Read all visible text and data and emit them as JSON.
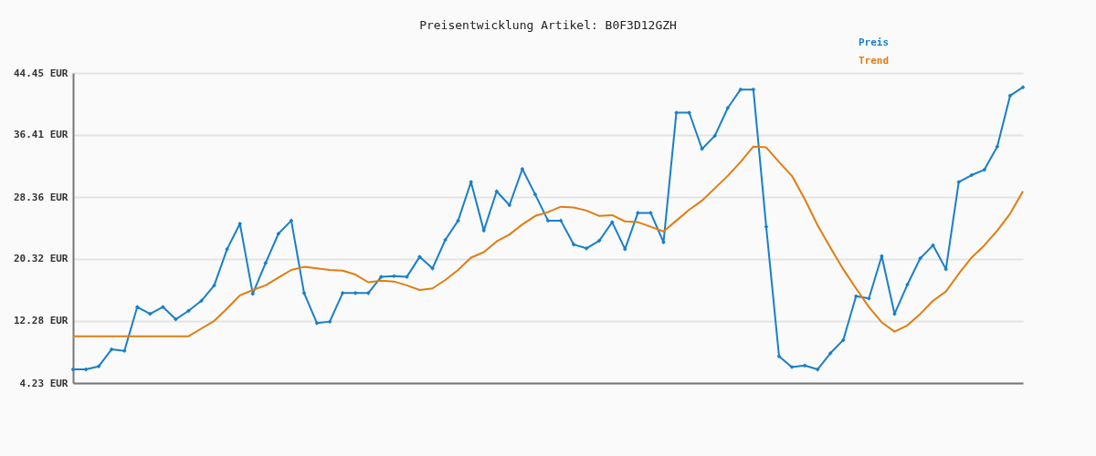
{
  "chart_data": {
    "type": "line",
    "title": "Preisentwicklung Artikel: B0F3D12GZH",
    "categories": [
      null,
      null,
      null,
      null,
      null,
      null,
      null,
      null,
      null,
      null,
      null,
      null,
      null,
      null,
      null,
      null,
      null,
      null,
      null,
      null,
      null,
      null,
      null,
      null,
      null,
      null,
      null,
      null,
      null,
      null,
      null,
      null,
      null,
      null,
      null,
      null,
      null,
      null,
      null,
      null,
      null,
      null,
      null,
      null,
      null,
      null,
      null,
      null,
      null,
      null,
      null,
      null,
      null,
      null,
      null,
      null,
      null,
      null,
      null,
      null,
      null,
      null,
      null,
      null,
      null,
      null,
      null,
      null,
      null,
      null,
      null,
      null,
      null,
      null,
      null
    ],
    "series": [
      {
        "name": "Preis",
        "color": "#1a7fc9",
        "marker": "diamond",
        "values": [
          6.0,
          6.0,
          6.4,
          8.6,
          8.4,
          14.1,
          13.2,
          14.1,
          12.5,
          13.6,
          14.9,
          16.9,
          21.6,
          24.9,
          15.8,
          19.8,
          23.6,
          25.3,
          15.9,
          12.0,
          12.2,
          15.9,
          15.9,
          15.9,
          18.0,
          18.1,
          18.0,
          20.6,
          19.1,
          22.8,
          25.3,
          30.3,
          24.0,
          29.1,
          27.3,
          32.0,
          28.7,
          25.3,
          25.3,
          22.2,
          21.7,
          22.7,
          25.1,
          21.6,
          26.3,
          26.3,
          22.5,
          39.3,
          39.3,
          34.6,
          36.3,
          39.9,
          42.3,
          42.3,
          24.5,
          7.7,
          6.3,
          6.5,
          6.0,
          8.1,
          9.8,
          15.5,
          15.2,
          20.7,
          13.2,
          17.0,
          20.4,
          22.1,
          19.0,
          30.3,
          31.2,
          31.9,
          34.9,
          41.5,
          42.6
        ]
      },
      {
        "name": "Trend",
        "color": "#e07d10",
        "marker": "none",
        "values": [
          10.3,
          10.3,
          10.3,
          10.3,
          10.3,
          10.3,
          10.3,
          10.3,
          10.3,
          10.3,
          11.3,
          12.3,
          13.9,
          15.6,
          16.3,
          16.9,
          17.9,
          18.9,
          19.3,
          19.1,
          18.9,
          18.8,
          18.3,
          17.3,
          17.5,
          17.4,
          16.9,
          16.3,
          16.5,
          17.6,
          18.9,
          20.5,
          21.2,
          22.6,
          23.5,
          24.8,
          25.9,
          26.4,
          27.1,
          27.0,
          26.6,
          25.9,
          26.0,
          25.2,
          25.1,
          24.5,
          23.9,
          25.3,
          26.7,
          27.9,
          29.5,
          31.1,
          32.9,
          34.9,
          34.8,
          32.9,
          31.1,
          28.1,
          24.7,
          21.8,
          19.0,
          16.5,
          14.1,
          12.1,
          10.9,
          11.7,
          13.2,
          14.9,
          16.1,
          18.4,
          20.5,
          22.1,
          24.0,
          26.2,
          29.1
        ]
      }
    ],
    "ylim": [
      4.23,
      44.45
    ],
    "yticks": [
      {
        "value": 4.23,
        "label": "4.23 EUR"
      },
      {
        "value": 12.28,
        "label": "12.28 EUR"
      },
      {
        "value": 20.32,
        "label": "20.32 EUR"
      },
      {
        "value": 28.36,
        "label": "28.36 EUR"
      },
      {
        "value": 36.41,
        "label": "36.41 EUR"
      },
      {
        "value": 44.45,
        "label": "44.45 EUR"
      }
    ],
    "grid": "y",
    "legend": "top right",
    "tick_labels": "y"
  }
}
